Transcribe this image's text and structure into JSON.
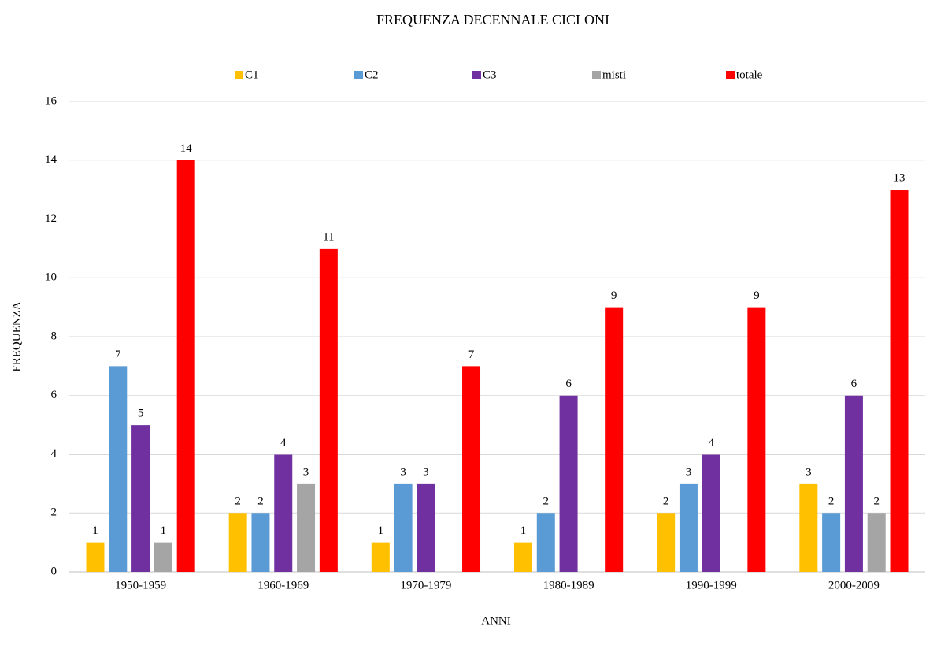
{
  "chart_data": {
    "type": "bar",
    "title": "FREQUENZA DECENNALE CICLONI",
    "x_label": "ANNI",
    "y_label": "FREQUENZA",
    "categories": [
      "1950-1959",
      "1960-1969",
      "1970-1979",
      "1980-1989",
      "1990-1999",
      "2000-2009"
    ],
    "series": [
      {
        "name": "C1",
        "color": "#FFC000",
        "values": [
          1,
          2,
          1,
          1,
          2,
          3
        ]
      },
      {
        "name": "C2",
        "color": "#5B9BD5",
        "values": [
          7,
          2,
          3,
          2,
          3,
          2
        ]
      },
      {
        "name": "C3",
        "color": "#7030A0",
        "values": [
          5,
          4,
          3,
          6,
          4,
          6
        ]
      },
      {
        "name": "misti",
        "color": "#A5A5A5",
        "values": [
          1,
          3,
          null,
          null,
          null,
          2
        ]
      },
      {
        "name": "totale",
        "color": "#FF0000",
        "values": [
          14,
          11,
          7,
          9,
          9,
          13
        ]
      }
    ],
    "ylim": [
      0,
      16
    ],
    "yticks": [
      0,
      2,
      4,
      6,
      8,
      10,
      12,
      14,
      16
    ],
    "grid": true,
    "legend": "top"
  }
}
